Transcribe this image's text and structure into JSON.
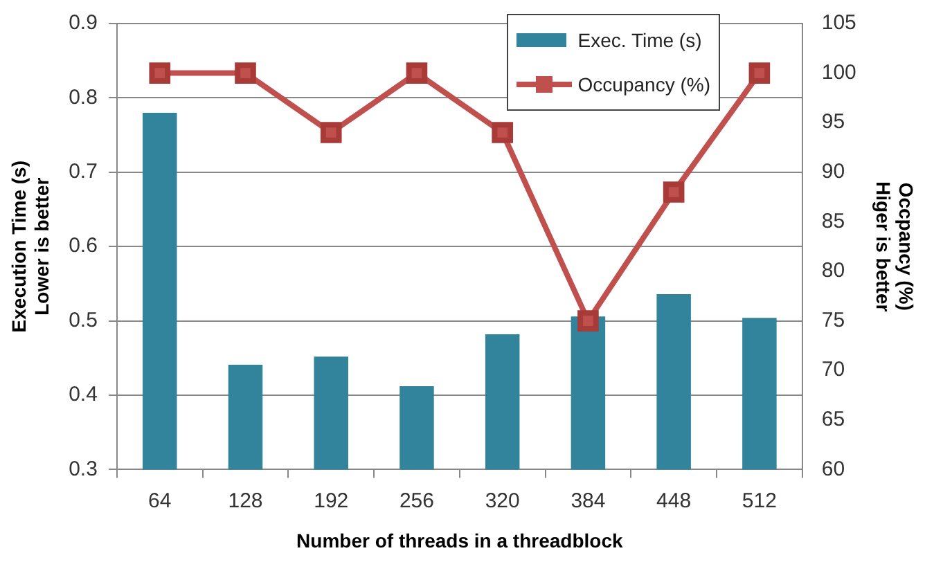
{
  "chart_data": {
    "type": "bar",
    "xlabel": "Number of threads in a threadblock",
    "ylabel": "Execution Time (s)\nLower is better",
    "y2label": "Occpancy (%)\nHiger is better",
    "categories": [
      "64",
      "128",
      "192",
      "256",
      "320",
      "384",
      "448",
      "512"
    ],
    "series": [
      {
        "name": "Exec. Time (s)",
        "color": "#31849b",
        "values": [
          0.78,
          0.441,
          0.452,
          0.412,
          0.482,
          0.506,
          0.536,
          0.504
        ]
      },
      {
        "name": "Occupancy (%)",
        "type": "line",
        "axis": "y2",
        "color": "#c0504d",
        "marker": "square",
        "values": [
          100,
          100,
          94,
          100,
          94,
          75,
          88,
          100
        ]
      }
    ],
    "ylim": [
      0.3,
      0.9
    ],
    "yticks": [
      0.3,
      0.4,
      0.5,
      0.6,
      0.7,
      0.8,
      0.9
    ],
    "y2lim": [
      60,
      105
    ],
    "y2ticks": [
      60,
      65,
      70,
      75,
      80,
      85,
      90,
      95,
      100,
      105
    ],
    "grid": "y",
    "legend": "top right"
  }
}
